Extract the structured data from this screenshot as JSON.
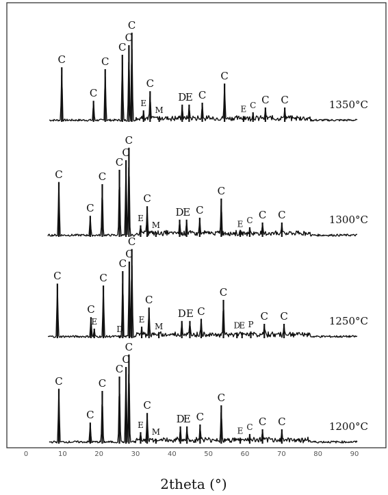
{
  "chart_data": {
    "type": "line",
    "title": "",
    "xlabel": "2theta (°)",
    "ylabel": "",
    "xlim": [
      0,
      90
    ],
    "x_ticks": [
      "0",
      "10",
      "20",
      "30",
      "40",
      "50",
      "60",
      "70",
      "80",
      "90"
    ],
    "grid": false,
    "legend": "none",
    "series": [
      {
        "name": "1350°C",
        "peaks": [
          {
            "x": 9.8,
            "h": 0.57,
            "label": "C"
          },
          {
            "x": 18.5,
            "h": 0.22,
            "label": "C"
          },
          {
            "x": 21.7,
            "h": 0.55,
            "label": "C"
          },
          {
            "x": 26.4,
            "h": 0.7,
            "label": "C"
          },
          {
            "x": 28.2,
            "h": 0.8,
            "label": "C"
          },
          {
            "x": 29.0,
            "h": 0.93,
            "label": "C"
          },
          {
            "x": 32.2,
            "h": 0.12,
            "label": "E"
          },
          {
            "x": 34.0,
            "h": 0.32,
            "label": "C"
          },
          {
            "x": 36.5,
            "h": 0.05,
            "label": "M"
          },
          {
            "x": 42.8,
            "h": 0.18,
            "label": "D"
          },
          {
            "x": 44.7,
            "h": 0.18,
            "label": "E"
          },
          {
            "x": 48.3,
            "h": 0.2,
            "label": "C"
          },
          {
            "x": 54.4,
            "h": 0.4,
            "label": "C"
          },
          {
            "x": 59.6,
            "h": 0.06,
            "label": "E"
          },
          {
            "x": 62.2,
            "h": 0.1,
            "label": "C"
          },
          {
            "x": 65.6,
            "h": 0.15,
            "label": "C"
          },
          {
            "x": 70.9,
            "h": 0.15,
            "label": "C"
          }
        ]
      },
      {
        "name": "1300°C",
        "peaks": [
          {
            "x": 9.0,
            "h": 0.57,
            "label": "C"
          },
          {
            "x": 17.6,
            "h": 0.22,
            "label": "C"
          },
          {
            "x": 20.9,
            "h": 0.55,
            "label": "C"
          },
          {
            "x": 25.6,
            "h": 0.7,
            "label": "C"
          },
          {
            "x": 27.4,
            "h": 0.8,
            "label": "C"
          },
          {
            "x": 28.2,
            "h": 0.93,
            "label": "C"
          },
          {
            "x": 31.4,
            "h": 0.12,
            "label": "E"
          },
          {
            "x": 33.2,
            "h": 0.32,
            "label": "C"
          },
          {
            "x": 35.6,
            "h": 0.05,
            "label": "M"
          },
          {
            "x": 42.1,
            "h": 0.18,
            "label": "D"
          },
          {
            "x": 44.0,
            "h": 0.18,
            "label": "E"
          },
          {
            "x": 47.6,
            "h": 0.2,
            "label": "C"
          },
          {
            "x": 53.5,
            "h": 0.4,
            "label": "C"
          },
          {
            "x": 58.7,
            "h": 0.06,
            "label": "E"
          },
          {
            "x": 61.3,
            "h": 0.1,
            "label": "C"
          },
          {
            "x": 64.8,
            "h": 0.15,
            "label": "C"
          },
          {
            "x": 70.1,
            "h": 0.15,
            "label": "C"
          }
        ]
      },
      {
        "name": "1250°C",
        "peaks": [
          {
            "x": 8.6,
            "h": 0.57,
            "label": "C"
          },
          {
            "x": 17.8,
            "h": 0.22,
            "label": "C"
          },
          {
            "x": 18.7,
            "h": 0.1,
            "label": "E"
          },
          {
            "x": 21.2,
            "h": 0.55,
            "label": "C"
          },
          {
            "x": 25.7,
            "h": 0.02,
            "label": "D"
          },
          {
            "x": 26.5,
            "h": 0.7,
            "label": "C"
          },
          {
            "x": 28.3,
            "h": 0.8,
            "label": "C"
          },
          {
            "x": 29.0,
            "h": 0.93,
            "label": "C"
          },
          {
            "x": 31.7,
            "h": 0.12,
            "label": "E"
          },
          {
            "x": 33.7,
            "h": 0.32,
            "label": "C"
          },
          {
            "x": 36.4,
            "h": 0.05,
            "label": "M"
          },
          {
            "x": 42.7,
            "h": 0.18,
            "label": "D"
          },
          {
            "x": 44.9,
            "h": 0.18,
            "label": "E"
          },
          {
            "x": 48.0,
            "h": 0.2,
            "label": "C"
          },
          {
            "x": 54.1,
            "h": 0.4,
            "label": "C"
          },
          {
            "x": 57.8,
            "h": 0.06,
            "label": "D"
          },
          {
            "x": 59.2,
            "h": 0.06,
            "label": "E"
          },
          {
            "x": 61.6,
            "h": 0.07,
            "label": "P"
          },
          {
            "x": 65.3,
            "h": 0.15,
            "label": "C"
          },
          {
            "x": 70.7,
            "h": 0.15,
            "label": "C"
          }
        ]
      },
      {
        "name": "1200°C",
        "peaks": [
          {
            "x": 9.0,
            "h": 0.57,
            "label": "C"
          },
          {
            "x": 17.6,
            "h": 0.22,
            "label": "C"
          },
          {
            "x": 20.9,
            "h": 0.55,
            "label": "C"
          },
          {
            "x": 25.6,
            "h": 0.7,
            "label": "C"
          },
          {
            "x": 27.4,
            "h": 0.8,
            "label": "C"
          },
          {
            "x": 28.2,
            "h": 0.93,
            "label": "C"
          },
          {
            "x": 31.4,
            "h": 0.12,
            "label": "E"
          },
          {
            "x": 33.2,
            "h": 0.32,
            "label": "C"
          },
          {
            "x": 35.6,
            "h": 0.05,
            "label": "M"
          },
          {
            "x": 42.3,
            "h": 0.18,
            "label": "D"
          },
          {
            "x": 44.1,
            "h": 0.18,
            "label": "E"
          },
          {
            "x": 47.7,
            "h": 0.2,
            "label": "C"
          },
          {
            "x": 53.5,
            "h": 0.4,
            "label": "C"
          },
          {
            "x": 58.7,
            "h": 0.06,
            "label": "E"
          },
          {
            "x": 61.3,
            "h": 0.1,
            "label": "C"
          },
          {
            "x": 64.8,
            "h": 0.15,
            "label": "C"
          },
          {
            "x": 70.1,
            "h": 0.15,
            "label": "C"
          }
        ]
      }
    ]
  }
}
